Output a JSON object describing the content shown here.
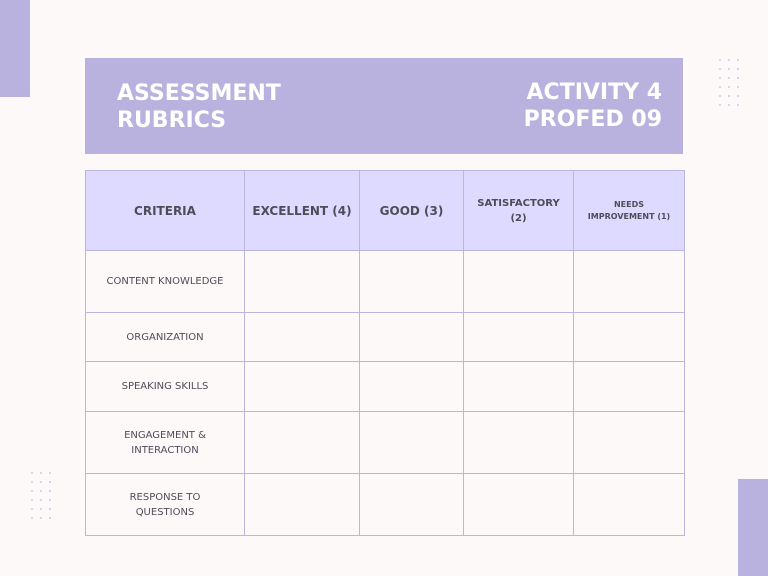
{
  "header": {
    "title": "ASSESSMENT\nRUBRICS",
    "activity": "ACTIVITY 4\nPROFED 09"
  },
  "table": {
    "columns": [
      "CRITERIA",
      "EXCELLENT (4)",
      "GOOD (3)",
      "SATISFACTORY (2)",
      "NEEDS IMPROVEMENT (1)"
    ],
    "rows": [
      "CONTENT KNOWLEDGE",
      "ORGANIZATION",
      "SPEAKING SKILLS",
      "ENGAGEMENT & INTERACTION",
      "RESPONSE TO QUESTIONS"
    ]
  },
  "colors": {
    "accent": "#bab2de",
    "header_cell": "#dedaff",
    "background": "#fdf9f8",
    "text": "#4e4c58"
  }
}
